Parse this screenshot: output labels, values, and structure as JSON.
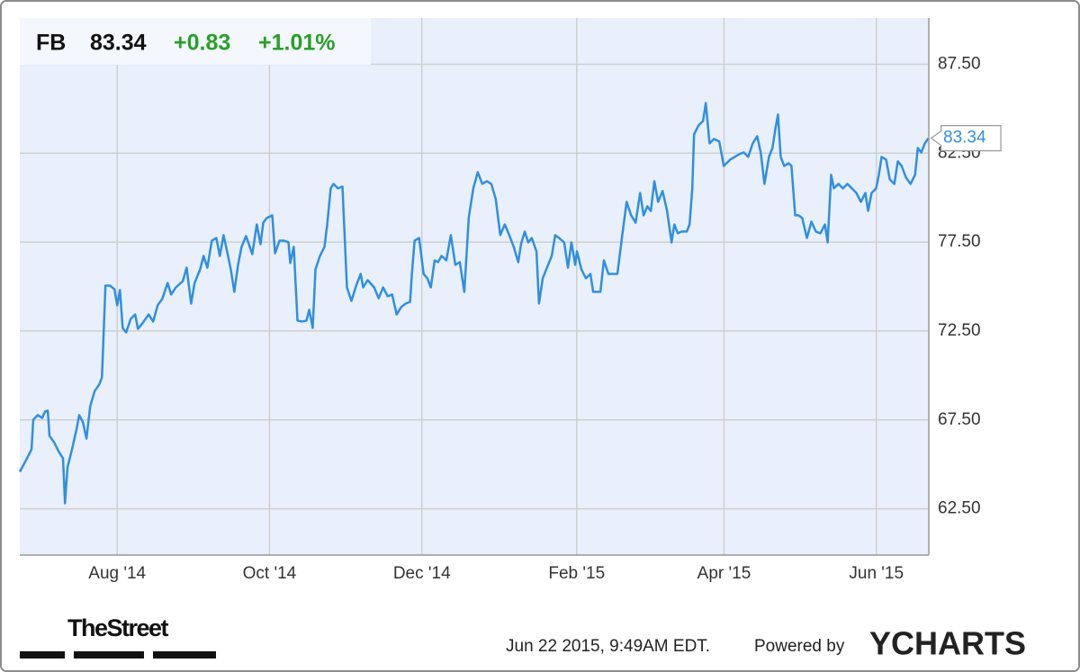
{
  "chart_data": {
    "type": "line",
    "ticker": "FB",
    "price": "83.34",
    "change": "+0.83",
    "change_pct": "+1.01%",
    "xlim": [
      0,
      364
    ],
    "xticks": [
      {
        "value": 39,
        "label": "Aug '14"
      },
      {
        "value": 100,
        "label": "Oct '14"
      },
      {
        "value": 161,
        "label": "Dec '14"
      },
      {
        "value": 223,
        "label": "Feb '15"
      },
      {
        "value": 282,
        "label": "Apr '15"
      },
      {
        "value": 343,
        "label": "Jun '15"
      }
    ],
    "ylim": [
      59.9,
      90.1
    ],
    "yticks": [
      {
        "value": 62.5,
        "label": "62.50"
      },
      {
        "value": 67.5,
        "label": "67.50"
      },
      {
        "value": 72.5,
        "label": "72.50"
      },
      {
        "value": 77.5,
        "label": "77.50"
      },
      {
        "value": 82.5,
        "label": "82.50"
      },
      {
        "value": 87.5,
        "label": "87.50"
      }
    ],
    "grid": true,
    "x": [
      0,
      2.9,
      4.7,
      5.4,
      7.2,
      9.0,
      10.1,
      11.2,
      11.9,
      13.7,
      15.5,
      17.3,
      18.1,
      19.1,
      20.9,
      22.7,
      23.8,
      25.3,
      26.7,
      28.2,
      30.0,
      31.8,
      32.9,
      34.3,
      36.1,
      37.9,
      39.0,
      40.1,
      41.2,
      42.6,
      44.4,
      46.2,
      47.3,
      49.1,
      51.6,
      53.4,
      55.2,
      57.0,
      59.2,
      60.6,
      62.5,
      65.3,
      66.8,
      68.6,
      70.0,
      72.2,
      73.6,
      75.1,
      76.9,
      78.7,
      80.1,
      81.6,
      83.0,
      84.5,
      85.9,
      87.4,
      88.8,
      90.6,
      92.1,
      93.1,
      94.9,
      96.4,
      97.5,
      98.9,
      101.1,
      102.2,
      104.0,
      105.8,
      107.6,
      108.3,
      109.7,
      111.2,
      113.0,
      114.8,
      115.9,
      117.3,
      118.4,
      120.2,
      122.0,
      123.1,
      124.5,
      125.6,
      127.4,
      129.2,
      131.0,
      132.8,
      134.7,
      136.5,
      137.5,
      139.3,
      141.9,
      143.7,
      145.5,
      147.3,
      149.1,
      150.9,
      152.7,
      154.5,
      156.3,
      157.0,
      158.1,
      159.9,
      161.7,
      163.2,
      164.6,
      166.1,
      167.5,
      168.9,
      170.8,
      172.6,
      174.4,
      176.2,
      178.0,
      179.8,
      181.6,
      183.4,
      185.2,
      187.0,
      188.8,
      190.6,
      192.4,
      194.2,
      196.0,
      197.8,
      199.6,
      200.7,
      202.2,
      203.6,
      205.0,
      206.9,
      207.9,
      209.4,
      210.8,
      213.0,
      214.4,
      215.9,
      218.0,
      219.5,
      220.9,
      222.4,
      223.1,
      224.9,
      226.7,
      228.5,
      229.6,
      231.0,
      232.5,
      233.9,
      235.7,
      237.5,
      239.3,
      241.1,
      243.0,
      244.8,
      246.6,
      248.4,
      249.8,
      251.3,
      252.7,
      254.1,
      255.6,
      257.4,
      259.2,
      261.0,
      262.1,
      263.5,
      265.0,
      267.1,
      268.2,
      269.3,
      270.0,
      271.8,
      273.6,
      274.7,
      276.2,
      278.0,
      280.1,
      281.9,
      284.5,
      286.3,
      288.1,
      289.9,
      291.7,
      293.5,
      295.3,
      296.7,
      298.2,
      300.0,
      301.4,
      302.5,
      303.6,
      304.7,
      306.1,
      307.9,
      309.0,
      310.5,
      311.9,
      313.3,
      315.2,
      317.0,
      318.8,
      320.6,
      322.4,
      323.5,
      324.9,
      326.0,
      327.8,
      329.6,
      331.4,
      333.2,
      335.0,
      336.8,
      338.6,
      339.7,
      341.1,
      342.9,
      344.0,
      345.1,
      346.9,
      348.4,
      350.2,
      351.6,
      353.1,
      354.9,
      356.7,
      358.5,
      359.6,
      361.0,
      362.4,
      363.9
    ],
    "series": [
      {
        "name": "FB",
        "color": "#2f8fe0",
        "values": [
          64.58,
          65.34,
          65.84,
          67.51,
          67.77,
          67.61,
          67.97,
          68.02,
          66.6,
          66.25,
          65.74,
          65.34,
          62.81,
          64.83,
          65.84,
          66.96,
          67.77,
          67.36,
          66.45,
          68.27,
          69.13,
          69.49,
          69.89,
          75.05,
          75.05,
          74.85,
          73.94,
          74.8,
          72.67,
          72.42,
          73.18,
          73.43,
          72.62,
          72.93,
          73.43,
          73.03,
          73.94,
          74.29,
          75.2,
          74.55,
          74.95,
          75.31,
          76.06,
          74.04,
          75.2,
          75.96,
          76.72,
          76.06,
          77.58,
          77.73,
          76.72,
          77.89,
          76.98,
          75.96,
          74.7,
          76.22,
          77.23,
          77.84,
          77.23,
          76.82,
          78.49,
          77.38,
          78.59,
          78.85,
          79.0,
          76.87,
          77.58,
          77.58,
          77.48,
          76.32,
          77.23,
          73.08,
          73.03,
          73.08,
          73.69,
          72.67,
          75.96,
          76.72,
          77.23,
          78.49,
          80.52,
          80.77,
          80.52,
          80.62,
          74.95,
          74.19,
          75.05,
          75.71,
          74.95,
          75.36,
          74.95,
          74.34,
          74.95,
          74.45,
          74.55,
          73.43,
          73.84,
          74.04,
          74.14,
          75.71,
          77.58,
          77.73,
          75.71,
          75.46,
          74.95,
          76.47,
          76.37,
          76.72,
          76.47,
          77.89,
          76.22,
          76.37,
          74.7,
          78.9,
          80.52,
          81.43,
          80.77,
          80.92,
          80.77,
          79.91,
          77.89,
          78.49,
          77.89,
          77.23,
          76.37,
          77.38,
          78.09,
          77.48,
          77.73,
          76.98,
          74.04,
          75.46,
          75.96,
          76.72,
          77.89,
          77.73,
          77.48,
          76.06,
          77.48,
          76.22,
          76.98,
          75.96,
          75.46,
          75.71,
          74.7,
          74.7,
          74.7,
          76.47,
          75.71,
          75.71,
          75.71,
          77.73,
          79.76,
          79.0,
          78.59,
          80.26,
          79.0,
          79.51,
          79.25,
          80.92,
          79.76,
          80.37,
          79.25,
          77.48,
          78.49,
          77.99,
          78.09,
          78.09,
          78.49,
          80.52,
          83.55,
          84.06,
          84.31,
          85.32,
          83.05,
          83.3,
          83.15,
          81.78,
          82.14,
          82.29,
          82.44,
          82.54,
          82.29,
          83.05,
          83.45,
          82.54,
          80.77,
          82.29,
          82.79,
          83.81,
          84.67,
          82.29,
          81.78,
          81.93,
          81.78,
          79.0,
          79.0,
          78.85,
          77.73,
          78.65,
          78.09,
          77.99,
          78.49,
          77.48,
          81.28,
          80.52,
          80.77,
          80.52,
          80.77,
          80.52,
          80.26,
          79.76,
          80.26,
          79.25,
          80.26,
          80.52,
          81.28,
          82.29,
          82.14,
          81.02,
          80.77,
          82.04,
          81.78,
          81.12,
          80.77,
          81.28,
          82.79,
          82.54,
          83.05,
          83.34
        ]
      }
    ]
  },
  "footer": {
    "brand": "TheStreet",
    "timestamp": "Jun 22 2015, 9:49AM EDT.",
    "powered": "Powered by",
    "provider": "YCHARTS"
  }
}
